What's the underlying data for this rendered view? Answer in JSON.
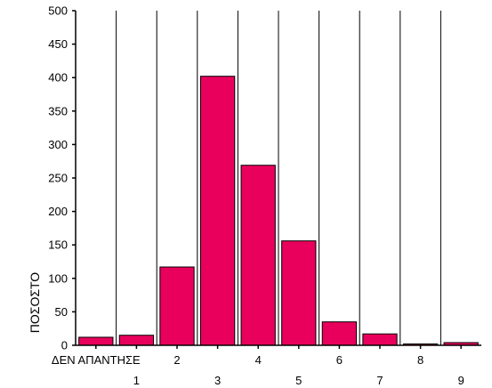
{
  "chart_data": {
    "type": "bar",
    "title": "",
    "xlabel": "",
    "ylabel": "ΠΟΣΟΣΤΟ",
    "categories": [
      "ΔΕΝ ΑΠΑΝΤΗΣΕ",
      "1",
      "2",
      "3",
      "4",
      "5",
      "6",
      "7",
      "8",
      "9"
    ],
    "values": [
      12,
      15,
      117,
      402,
      269,
      156,
      35,
      17,
      2,
      4
    ],
    "ylim": [
      0,
      500
    ],
    "yticks": [
      0,
      50,
      100,
      150,
      200,
      250,
      300,
      350,
      400,
      450,
      500
    ],
    "grid": "vertical lines between categories",
    "bar_color": "#e8005c",
    "bar_stroke": "#000000"
  }
}
